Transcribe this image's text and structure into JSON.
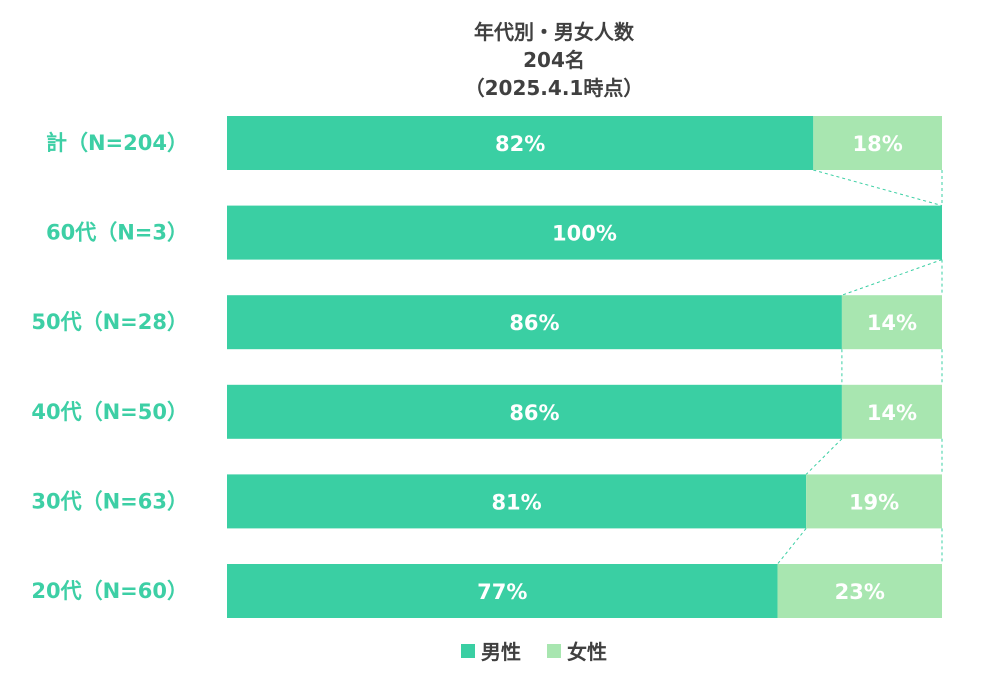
{
  "colors": {
    "male": "#3ACFA3",
    "female": "#A8E6B0",
    "category_text": "#3DCFA5",
    "title_text": "#404040"
  },
  "chart_data": {
    "type": "bar",
    "orientation": "horizontal",
    "stacked": true,
    "percent": true,
    "title": [
      "年代別・男女人数",
      "204名",
      "（2025.4.1時点）"
    ],
    "categories": [
      "計（N=204）",
      "60代（N=3）",
      "50代（N=28）",
      "40代（N=50）",
      "30代（N=63）",
      "20代（N=60）"
    ],
    "series": [
      {
        "name": "男性",
        "values": [
          82,
          100,
          86,
          86,
          81,
          77
        ]
      },
      {
        "name": "女性",
        "values": [
          18,
          0,
          14,
          14,
          19,
          23
        ]
      }
    ],
    "data_labels": [
      [
        "82%",
        "100%",
        "86%",
        "86%",
        "81%",
        "77%"
      ],
      [
        "18%",
        "",
        "14%",
        "14%",
        "19%",
        "23%"
      ]
    ],
    "xlim": [
      0,
      100
    ],
    "grid": false,
    "series_connector_lines": true,
    "legend": {
      "position": "bottom",
      "entries": [
        "男性",
        "女性"
      ]
    }
  }
}
